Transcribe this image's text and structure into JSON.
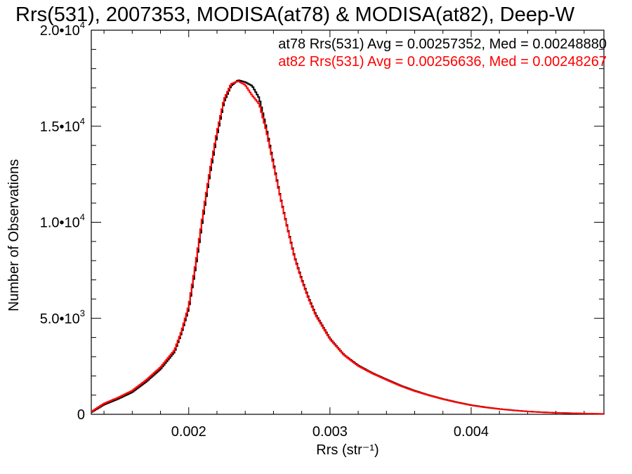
{
  "chart_data": {
    "type": "line",
    "title": "Rrs(531), 2007353, MODISA(at78) & MODISA(at82), Deep-W",
    "xlabel": "Rrs (str⁻¹)",
    "ylabel": "Number of Observations",
    "xlim": [
      0.00131,
      0.00494
    ],
    "ylim": [
      0,
      20000
    ],
    "x_ticks": [
      {
        "value": 0.002,
        "label": "0.002"
      },
      {
        "value": 0.003,
        "label": "0.003"
      },
      {
        "value": 0.004,
        "label": "0.004"
      }
    ],
    "y_ticks": [
      {
        "value": 0,
        "label": "0"
      },
      {
        "value": 5000,
        "label": "5.0•10",
        "sup": "3"
      },
      {
        "value": 10000,
        "label": "1.0•10",
        "sup": "4"
      },
      {
        "value": 15000,
        "label": "1.5•10",
        "sup": "4"
      },
      {
        "value": 20000,
        "label": "2.0•10",
        "sup": "4"
      }
    ],
    "grid": false,
    "step": true,
    "x": [
      0.00131,
      0.0014,
      0.0015,
      0.0016,
      0.0017,
      0.0018,
      0.0019,
      0.00195,
      0.002,
      0.00205,
      0.0021,
      0.00215,
      0.0022,
      0.00225,
      0.0023,
      0.00235,
      0.0024,
      0.00245,
      0.0025,
      0.00255,
      0.0026,
      0.00265,
      0.0027,
      0.00275,
      0.0028,
      0.00285,
      0.0029,
      0.003,
      0.0031,
      0.0032,
      0.0033,
      0.0034,
      0.0035,
      0.0036,
      0.0037,
      0.0038,
      0.0039,
      0.004,
      0.0041,
      0.0042,
      0.0043,
      0.0044,
      0.0045,
      0.0046,
      0.0047,
      0.0048,
      0.0049,
      0.00494
    ],
    "series": [
      {
        "name": "at78",
        "color": "#000000",
        "values": [
          100,
          500,
          800,
          1150,
          1700,
          2350,
          3250,
          4250,
          5500,
          7700,
          10200,
          12500,
          14500,
          16250,
          17100,
          17400,
          17300,
          17100,
          16450,
          14900,
          13100,
          11300,
          9700,
          8200,
          7050,
          6050,
          5200,
          3950,
          3100,
          2550,
          2150,
          1820,
          1500,
          1230,
          1000,
          800,
          630,
          480,
          370,
          280,
          210,
          150,
          110,
          80,
          60,
          40,
          25,
          20
        ]
      },
      {
        "name": "at82",
        "color": "#ff0000",
        "values": [
          130,
          560,
          870,
          1230,
          1790,
          2450,
          3350,
          4350,
          5650,
          7900,
          10400,
          12700,
          14700,
          16400,
          17200,
          17350,
          17150,
          16600,
          16150,
          14750,
          13000,
          11250,
          9650,
          8150,
          7000,
          6000,
          5150,
          3920,
          3080,
          2520,
          2130,
          1800,
          1480,
          1210,
          990,
          790,
          620,
          470,
          360,
          275,
          205,
          148,
          108,
          78,
          58,
          40,
          25,
          20
        ]
      }
    ],
    "annotations": [
      {
        "text": "at78 Rrs(531) Avg = 0.00257352, Med = 0.00248880",
        "color": "#000000"
      },
      {
        "text": "at82 Rrs(531) Avg = 0.00256636, Med = 0.00248267",
        "color": "#ff0000"
      }
    ]
  }
}
